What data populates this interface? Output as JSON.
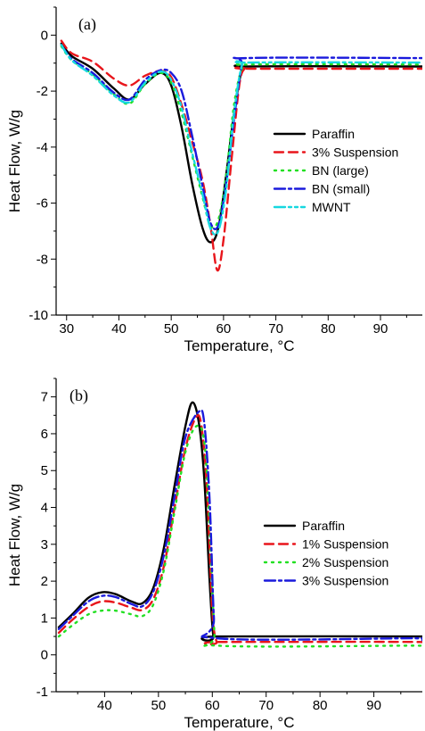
{
  "chart_data": [
    {
      "type": "line",
      "panel_label": "(a)",
      "xlabel": "Temperature, °C",
      "ylabel": "Heat Flow, W/g",
      "xlim": [
        28,
        98
      ],
      "ylim": [
        -10,
        1
      ],
      "xticks": [
        30,
        40,
        50,
        60,
        70,
        80,
        90
      ],
      "yticks": [
        0,
        -2,
        -4,
        -6,
        -8,
        -10
      ],
      "legend_position": "right",
      "series": [
        {
          "name": "Paraffin",
          "color": "#000000",
          "dash": "solid",
          "points": [
            [
              29,
              -0.3
            ],
            [
              31,
              -0.75
            ],
            [
              35,
              -1.2
            ],
            [
              39,
              -1.9
            ],
            [
              42,
              -2.3
            ],
            [
              45,
              -1.75
            ],
            [
              48,
              -1.35
            ],
            [
              50,
              -1.8
            ],
            [
              52,
              -3.3
            ],
            [
              54,
              -5.3
            ],
            [
              56,
              -6.9
            ],
            [
              57.5,
              -7.4
            ],
            [
              59,
              -6.9
            ],
            [
              60.5,
              -5.0
            ],
            [
              62,
              -2.8
            ],
            [
              63.5,
              -1.25
            ],
            [
              65,
              -1.12
            ],
            [
              98,
              -1.12
            ]
          ]
        },
        {
          "name": "3% Suspension",
          "color": "#e8151b",
          "dash": "dashed",
          "points": [
            [
              29,
              -0.2
            ],
            [
              31,
              -0.65
            ],
            [
              35,
              -0.95
            ],
            [
              39,
              -1.55
            ],
            [
              42,
              -1.8
            ],
            [
              45,
              -1.45
            ],
            [
              48,
              -1.28
            ],
            [
              50,
              -1.5
            ],
            [
              52,
              -2.5
            ],
            [
              54,
              -3.8
            ],
            [
              56,
              -5.2
            ],
            [
              57.5,
              -6.8
            ],
            [
              58.8,
              -8.4
            ],
            [
              60,
              -7.3
            ],
            [
              61.5,
              -4.5
            ],
            [
              63,
              -1.8
            ],
            [
              64,
              -1.2
            ],
            [
              65,
              -1.2
            ],
            [
              98,
              -1.2
            ]
          ]
        },
        {
          "name": "BN (large)",
          "color": "#22e022",
          "dash": "dotted",
          "points": [
            [
              29,
              -0.4
            ],
            [
              31,
              -0.9
            ],
            [
              35,
              -1.4
            ],
            [
              39,
              -2.1
            ],
            [
              42,
              -2.45
            ],
            [
              45,
              -1.75
            ],
            [
              48,
              -1.35
            ],
            [
              50,
              -1.7
            ],
            [
              52,
              -2.8
            ],
            [
              54,
              -4.3
            ],
            [
              56,
              -5.8
            ],
            [
              57.5,
              -6.8
            ],
            [
              59,
              -6.6
            ],
            [
              60.5,
              -5.0
            ],
            [
              62,
              -2.5
            ],
            [
              63.5,
              -1.2
            ],
            [
              65,
              -1.05
            ],
            [
              98,
              -1.05
            ]
          ]
        },
        {
          "name": "BN (small)",
          "color": "#1a1adc",
          "dash": "dashdot",
          "points": [
            [
              29,
              -0.35
            ],
            [
              31,
              -0.85
            ],
            [
              35,
              -1.35
            ],
            [
              39,
              -2.05
            ],
            [
              42,
              -2.3
            ],
            [
              45,
              -1.6
            ],
            [
              48,
              -1.25
            ],
            [
              50,
              -1.35
            ],
            [
              52,
              -2.0
            ],
            [
              54,
              -3.6
            ],
            [
              56,
              -5.4
            ],
            [
              57.5,
              -6.7
            ],
            [
              59,
              -6.8
            ],
            [
              60.5,
              -5.3
            ],
            [
              62,
              -3.0
            ],
            [
              63.5,
              -1.05
            ],
            [
              64.5,
              -0.82
            ],
            [
              98,
              -0.82
            ]
          ]
        },
        {
          "name": "MWNT",
          "color": "#16d8e0",
          "dash": "dashdotdot",
          "points": [
            [
              29,
              -0.35
            ],
            [
              31,
              -0.9
            ],
            [
              35,
              -1.45
            ],
            [
              39,
              -2.15
            ],
            [
              42,
              -2.4
            ],
            [
              45,
              -1.7
            ],
            [
              48,
              -1.3
            ],
            [
              50,
              -1.6
            ],
            [
              52,
              -2.6
            ],
            [
              54,
              -4.2
            ],
            [
              56,
              -5.7
            ],
            [
              57.5,
              -6.9
            ],
            [
              59,
              -7.0
            ],
            [
              60.5,
              -5.5
            ],
            [
              62,
              -2.8
            ],
            [
              63.5,
              -1.1
            ],
            [
              65,
              -0.98
            ],
            [
              98,
              -0.98
            ]
          ]
        }
      ]
    },
    {
      "type": "line",
      "panel_label": "(b)",
      "xlabel": "Temperature, °C",
      "ylabel": "Heat Flow, W/g",
      "xlim": [
        31,
        99
      ],
      "ylim": [
        -1,
        7.5
      ],
      "xticks": [
        40,
        50,
        60,
        70,
        80,
        90
      ],
      "yticks": [
        -1,
        0,
        1,
        2,
        3,
        4,
        5,
        6,
        7
      ],
      "legend_position": "right",
      "series": [
        {
          "name": "Paraffin",
          "color": "#000000",
          "dash": "solid",
          "points": [
            [
              31.5,
              0.75
            ],
            [
              34,
              1.1
            ],
            [
              37,
              1.55
            ],
            [
              39.5,
              1.7
            ],
            [
              42,
              1.65
            ],
            [
              45,
              1.45
            ],
            [
              47,
              1.4
            ],
            [
              49,
              1.8
            ],
            [
              51,
              2.9
            ],
            [
              53,
              4.6
            ],
            [
              55,
              6.2
            ],
            [
              56.3,
              6.85
            ],
            [
              57.5,
              6.3
            ],
            [
              58.5,
              4.8
            ],
            [
              59.5,
              2.0
            ],
            [
              60.2,
              0.5
            ],
            [
              61,
              0.5
            ],
            [
              98,
              0.5
            ],
            [
              99,
              0.45
            ]
          ]
        },
        {
          "name": "1% Suspension",
          "color": "#e8151b",
          "dash": "dashed",
          "points": [
            [
              31.5,
              0.6
            ],
            [
              34,
              0.95
            ],
            [
              37,
              1.3
            ],
            [
              39.5,
              1.45
            ],
            [
              42,
              1.42
            ],
            [
              45,
              1.28
            ],
            [
              47,
              1.22
            ],
            [
              49,
              1.5
            ],
            [
              51,
              2.4
            ],
            [
              53,
              4.0
            ],
            [
              55,
              5.6
            ],
            [
              57,
              6.45
            ],
            [
              58,
              6.2
            ],
            [
              59,
              4.5
            ],
            [
              60,
              1.2
            ],
            [
              60.8,
              0.35
            ],
            [
              61.5,
              0.35
            ],
            [
              98,
              0.35
            ],
            [
              99,
              0.3
            ]
          ]
        },
        {
          "name": "2% Suspension",
          "color": "#22e022",
          "dash": "dotted",
          "points": [
            [
              31.5,
              0.5
            ],
            [
              34,
              0.8
            ],
            [
              37,
              1.1
            ],
            [
              39.5,
              1.2
            ],
            [
              42,
              1.2
            ],
            [
              45,
              1.1
            ],
            [
              47,
              1.05
            ],
            [
              49,
              1.35
            ],
            [
              51,
              2.3
            ],
            [
              53,
              3.9
            ],
            [
              55,
              5.5
            ],
            [
              57,
              6.2
            ],
            [
              58.5,
              5.8
            ],
            [
              59.5,
              3.5
            ],
            [
              60.4,
              0.6
            ],
            [
              61,
              0.25
            ],
            [
              98,
              0.25
            ],
            [
              99,
              0.22
            ]
          ]
        },
        {
          "name": "3% Suspension",
          "color": "#1a1adc",
          "dash": "dashdot",
          "points": [
            [
              31.5,
              0.7
            ],
            [
              34,
              1.05
            ],
            [
              37,
              1.45
            ],
            [
              39.5,
              1.6
            ],
            [
              42,
              1.57
            ],
            [
              45,
              1.38
            ],
            [
              47,
              1.32
            ],
            [
              49,
              1.7
            ],
            [
              51,
              2.7
            ],
            [
              53,
              4.3
            ],
            [
              55,
              5.9
            ],
            [
              57.5,
              6.6
            ],
            [
              58.5,
              6.3
            ],
            [
              59.5,
              4.2
            ],
            [
              60.3,
              1.0
            ],
            [
              61,
              0.45
            ],
            [
              98,
              0.45
            ],
            [
              99,
              0.4
            ]
          ]
        }
      ]
    }
  ]
}
